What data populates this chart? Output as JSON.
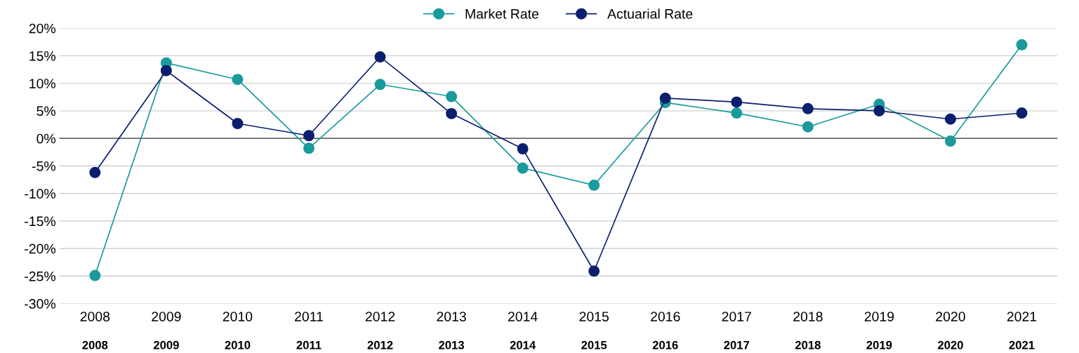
{
  "chart_data": {
    "type": "line",
    "categories": [
      "2008",
      "2009",
      "2010",
      "2011",
      "2012",
      "2013",
      "2014",
      "2015",
      "2016",
      "2017",
      "2018",
      "2019",
      "2020",
      "2021"
    ],
    "series": [
      {
        "name": "Market Rate",
        "color": "#1a9a9c",
        "values": [
          -24.9,
          13.7,
          10.7,
          -1.8,
          9.8,
          7.6,
          -5.4,
          -8.5,
          6.5,
          4.6,
          2.1,
          6.2,
          -0.5,
          17.0
        ]
      },
      {
        "name": "Actuarial Rate",
        "color": "#0c1f6e",
        "values": [
          -6.2,
          12.3,
          2.7,
          0.5,
          14.8,
          4.5,
          -1.9,
          -24.1,
          7.3,
          6.6,
          5.4,
          5.0,
          3.5,
          4.6
        ]
      }
    ],
    "ylim": [
      -30,
      20
    ],
    "yticks": [
      {
        "value": -30,
        "label": "-30%"
      },
      {
        "value": -25,
        "label": "-25%"
      },
      {
        "value": -20,
        "label": "-20%"
      },
      {
        "value": -15,
        "label": "-15%"
      },
      {
        "value": -10,
        "label": "-10%"
      },
      {
        "value": -5,
        "label": "-5%"
      },
      {
        "value": 0,
        "label": "0%"
      },
      {
        "value": 5,
        "label": "5%"
      },
      {
        "value": 10,
        "label": "10%"
      },
      {
        "value": 15,
        "label": "15%"
      },
      {
        "value": 20,
        "label": "20%"
      }
    ],
    "annotations": [
      "2008",
      "2009",
      "2010",
      "2011",
      "2012",
      "2013",
      "2014",
      "2015",
      "2016",
      "2017",
      "2018",
      "2019",
      "2020",
      "2021"
    ],
    "ref_lines": [
      {
        "axis": "y",
        "value": 0,
        "color": "#404040"
      }
    ],
    "grid": "y",
    "legend": "top",
    "marker": "circle",
    "line_style": "solid"
  }
}
